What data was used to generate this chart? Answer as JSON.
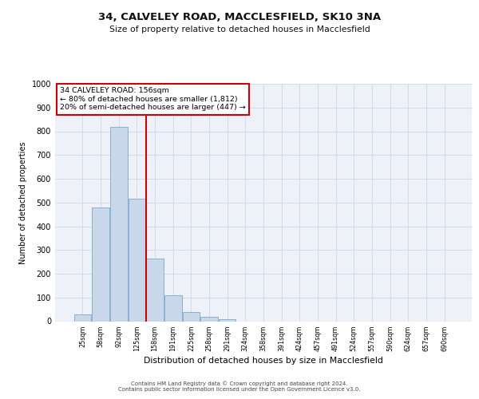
{
  "title_line1": "34, CALVELEY ROAD, MACCLESFIELD, SK10 3NA",
  "title_line2": "Size of property relative to detached houses in Macclesfield",
  "xlabel": "Distribution of detached houses by size in Macclesfield",
  "ylabel": "Number of detached properties",
  "bar_categories": [
    "25sqm",
    "58sqm",
    "92sqm",
    "125sqm",
    "158sqm",
    "191sqm",
    "225sqm",
    "258sqm",
    "291sqm",
    "324sqm",
    "358sqm",
    "391sqm",
    "424sqm",
    "457sqm",
    "491sqm",
    "524sqm",
    "557sqm",
    "590sqm",
    "624sqm",
    "657sqm",
    "690sqm"
  ],
  "bar_values": [
    28,
    480,
    820,
    515,
    265,
    110,
    37,
    17,
    8,
    0,
    0,
    0,
    0,
    0,
    0,
    0,
    0,
    0,
    0,
    0,
    0
  ],
  "bar_color": "#c8d8ea",
  "bar_edge_color": "#7aaac8",
  "grid_color": "#d0dce8",
  "background_color": "#eef2f8",
  "vline_x_index": 3.5,
  "vline_color": "#cc0000",
  "annotation_text": "34 CALVELEY ROAD: 156sqm\n← 80% of detached houses are smaller (1,812)\n20% of semi-detached houses are larger (447) →",
  "annotation_box_color": "#cc0000",
  "ylim": [
    0,
    1000
  ],
  "yticks": [
    0,
    100,
    200,
    300,
    400,
    500,
    600,
    700,
    800,
    900,
    1000
  ],
  "footer_line1": "Contains HM Land Registry data © Crown copyright and database right 2024.",
  "footer_line2": "Contains public sector information licensed under the Open Government Licence v3.0."
}
